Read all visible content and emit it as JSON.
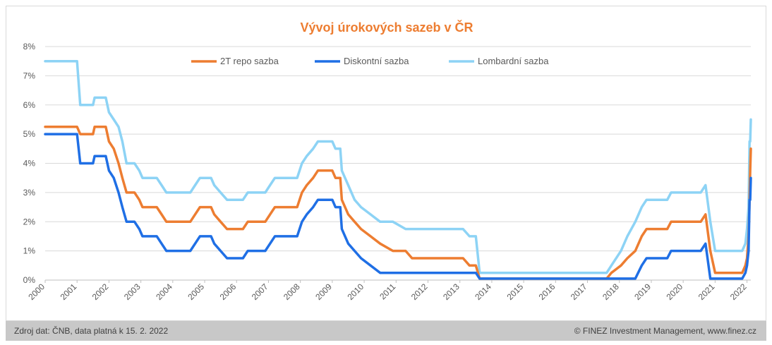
{
  "footer": {
    "source": "Zdroj dat: ČNB, data platná k 15. 2. 2022",
    "copyright": "© FINEZ Investment Management, www.finez.cz"
  },
  "chart_data": {
    "type": "line",
    "title": "Vývoj úrokových sazeb v ČR",
    "xlabel": "",
    "ylabel": "",
    "xlim": [
      2000.0,
      2022.12
    ],
    "ylim": [
      0,
      8
    ],
    "y_ticks": [
      "0%",
      "1%",
      "2%",
      "3%",
      "4%",
      "5%",
      "6%",
      "7%",
      "8%"
    ],
    "x_ticks": [
      "2000",
      "2001",
      "2002",
      "2003",
      "2004",
      "2005",
      "2006",
      "2007",
      "2008",
      "2009",
      "2010",
      "2011",
      "2012",
      "2013",
      "2014",
      "2015",
      "2016",
      "2017",
      "2018",
      "2019",
      "2020",
      "2021",
      "2022"
    ],
    "grid": true,
    "legend_position": "top",
    "colors": {
      "title": "#ed7d31",
      "grid": "#d9d9d9",
      "axis_text": "#595959"
    },
    "series": [
      {
        "name": "2T repo sazba",
        "color": "#ed7d31",
        "points": [
          [
            2000.0,
            5.25
          ],
          [
            2001.0,
            5.25
          ],
          [
            2001.1,
            5.0
          ],
          [
            2001.5,
            5.0
          ],
          [
            2001.55,
            5.25
          ],
          [
            2001.9,
            5.25
          ],
          [
            2002.0,
            4.75
          ],
          [
            2002.15,
            4.5
          ],
          [
            2002.3,
            4.0
          ],
          [
            2002.42,
            3.5
          ],
          [
            2002.55,
            3.0
          ],
          [
            2002.8,
            3.0
          ],
          [
            2002.95,
            2.75
          ],
          [
            2003.05,
            2.5
          ],
          [
            2003.5,
            2.5
          ],
          [
            2003.65,
            2.25
          ],
          [
            2003.8,
            2.0
          ],
          [
            2004.55,
            2.0
          ],
          [
            2004.7,
            2.25
          ],
          [
            2004.85,
            2.5
          ],
          [
            2005.2,
            2.5
          ],
          [
            2005.3,
            2.25
          ],
          [
            2005.5,
            2.0
          ],
          [
            2005.7,
            1.75
          ],
          [
            2006.2,
            1.75
          ],
          [
            2006.35,
            2.0
          ],
          [
            2006.9,
            2.0
          ],
          [
            2007.05,
            2.25
          ],
          [
            2007.2,
            2.5
          ],
          [
            2007.9,
            2.5
          ],
          [
            2008.05,
            3.0
          ],
          [
            2008.2,
            3.25
          ],
          [
            2008.4,
            3.5
          ],
          [
            2008.55,
            3.75
          ],
          [
            2009.0,
            3.75
          ],
          [
            2009.1,
            3.5
          ],
          [
            2009.25,
            3.5
          ],
          [
            2009.3,
            2.75
          ],
          [
            2009.5,
            2.25
          ],
          [
            2009.7,
            2.0
          ],
          [
            2009.9,
            1.75
          ],
          [
            2010.2,
            1.5
          ],
          [
            2010.5,
            1.25
          ],
          [
            2010.9,
            1.0
          ],
          [
            2011.3,
            1.0
          ],
          [
            2011.5,
            0.75
          ],
          [
            2013.1,
            0.75
          ],
          [
            2013.3,
            0.5
          ],
          [
            2013.5,
            0.5
          ],
          [
            2013.62,
            0.05
          ],
          [
            2017.6,
            0.05
          ],
          [
            2017.75,
            0.25
          ],
          [
            2018.05,
            0.5
          ],
          [
            2018.25,
            0.75
          ],
          [
            2018.5,
            1.0
          ],
          [
            2018.7,
            1.5
          ],
          [
            2018.85,
            1.75
          ],
          [
            2019.5,
            1.75
          ],
          [
            2019.62,
            2.0
          ],
          [
            2020.55,
            2.0
          ],
          [
            2020.7,
            2.25
          ],
          [
            2020.85,
            1.0
          ],
          [
            2021.0,
            0.25
          ],
          [
            2021.85,
            0.25
          ],
          [
            2021.95,
            0.5
          ],
          [
            2022.0,
            0.75
          ],
          [
            2022.05,
            1.5
          ],
          [
            2022.08,
            2.75
          ],
          [
            2022.1,
            3.75
          ],
          [
            2022.12,
            4.5
          ]
        ]
      },
      {
        "name": "Diskontní sazba",
        "color": "#1f6fe5",
        "points": [
          [
            2000.0,
            5.0
          ],
          [
            2001.0,
            5.0
          ],
          [
            2001.1,
            4.0
          ],
          [
            2001.5,
            4.0
          ],
          [
            2001.55,
            4.25
          ],
          [
            2001.9,
            4.25
          ],
          [
            2002.0,
            3.75
          ],
          [
            2002.15,
            3.5
          ],
          [
            2002.3,
            3.0
          ],
          [
            2002.42,
            2.5
          ],
          [
            2002.55,
            2.0
          ],
          [
            2002.8,
            2.0
          ],
          [
            2002.95,
            1.75
          ],
          [
            2003.05,
            1.5
          ],
          [
            2003.5,
            1.5
          ],
          [
            2003.65,
            1.25
          ],
          [
            2003.8,
            1.0
          ],
          [
            2004.55,
            1.0
          ],
          [
            2004.7,
            1.25
          ],
          [
            2004.85,
            1.5
          ],
          [
            2005.2,
            1.5
          ],
          [
            2005.3,
            1.25
          ],
          [
            2005.5,
            1.0
          ],
          [
            2005.7,
            0.75
          ],
          [
            2006.2,
            0.75
          ],
          [
            2006.35,
            1.0
          ],
          [
            2006.9,
            1.0
          ],
          [
            2007.05,
            1.25
          ],
          [
            2007.2,
            1.5
          ],
          [
            2007.9,
            1.5
          ],
          [
            2008.05,
            2.0
          ],
          [
            2008.2,
            2.25
          ],
          [
            2008.4,
            2.5
          ],
          [
            2008.55,
            2.75
          ],
          [
            2009.0,
            2.75
          ],
          [
            2009.1,
            2.5
          ],
          [
            2009.25,
            2.5
          ],
          [
            2009.3,
            1.75
          ],
          [
            2009.5,
            1.25
          ],
          [
            2009.7,
            1.0
          ],
          [
            2009.9,
            0.75
          ],
          [
            2010.2,
            0.5
          ],
          [
            2010.5,
            0.25
          ],
          [
            2013.5,
            0.25
          ],
          [
            2013.62,
            0.05
          ],
          [
            2018.5,
            0.05
          ],
          [
            2018.7,
            0.5
          ],
          [
            2018.85,
            0.75
          ],
          [
            2019.5,
            0.75
          ],
          [
            2019.62,
            1.0
          ],
          [
            2020.55,
            1.0
          ],
          [
            2020.7,
            1.25
          ],
          [
            2020.85,
            0.05
          ],
          [
            2021.85,
            0.05
          ],
          [
            2021.95,
            0.25
          ],
          [
            2022.0,
            0.5
          ],
          [
            2022.05,
            1.0
          ],
          [
            2022.08,
            2.75
          ],
          [
            2022.1,
            2.75
          ],
          [
            2022.12,
            3.5
          ]
        ]
      },
      {
        "name": "Lombardní sazba",
        "color": "#8dd3f5",
        "points": [
          [
            2000.0,
            7.5
          ],
          [
            2001.0,
            7.5
          ],
          [
            2001.1,
            6.0
          ],
          [
            2001.5,
            6.0
          ],
          [
            2001.55,
            6.25
          ],
          [
            2001.9,
            6.25
          ],
          [
            2002.0,
            5.75
          ],
          [
            2002.15,
            5.5
          ],
          [
            2002.3,
            5.25
          ],
          [
            2002.42,
            4.75
          ],
          [
            2002.55,
            4.0
          ],
          [
            2002.8,
            4.0
          ],
          [
            2002.95,
            3.75
          ],
          [
            2003.05,
            3.5
          ],
          [
            2003.5,
            3.5
          ],
          [
            2003.65,
            3.25
          ],
          [
            2003.8,
            3.0
          ],
          [
            2004.55,
            3.0
          ],
          [
            2004.7,
            3.25
          ],
          [
            2004.85,
            3.5
          ],
          [
            2005.2,
            3.5
          ],
          [
            2005.3,
            3.25
          ],
          [
            2005.5,
            3.0
          ],
          [
            2005.7,
            2.75
          ],
          [
            2006.2,
            2.75
          ],
          [
            2006.35,
            3.0
          ],
          [
            2006.9,
            3.0
          ],
          [
            2007.05,
            3.25
          ],
          [
            2007.2,
            3.5
          ],
          [
            2007.9,
            3.5
          ],
          [
            2008.05,
            4.0
          ],
          [
            2008.2,
            4.25
          ],
          [
            2008.4,
            4.5
          ],
          [
            2008.55,
            4.75
          ],
          [
            2009.0,
            4.75
          ],
          [
            2009.1,
            4.5
          ],
          [
            2009.25,
            4.5
          ],
          [
            2009.3,
            3.75
          ],
          [
            2009.5,
            3.25
          ],
          [
            2009.7,
            2.75
          ],
          [
            2009.9,
            2.5
          ],
          [
            2010.2,
            2.25
          ],
          [
            2010.5,
            2.0
          ],
          [
            2010.9,
            2.0
          ],
          [
            2011.3,
            1.75
          ],
          [
            2013.1,
            1.75
          ],
          [
            2013.3,
            1.5
          ],
          [
            2013.5,
            1.5
          ],
          [
            2013.62,
            0.25
          ],
          [
            2017.6,
            0.25
          ],
          [
            2017.75,
            0.5
          ],
          [
            2018.05,
            1.0
          ],
          [
            2018.25,
            1.5
          ],
          [
            2018.5,
            2.0
          ],
          [
            2018.7,
            2.5
          ],
          [
            2018.85,
            2.75
          ],
          [
            2019.5,
            2.75
          ],
          [
            2019.62,
            3.0
          ],
          [
            2020.55,
            3.0
          ],
          [
            2020.7,
            3.25
          ],
          [
            2020.85,
            2.0
          ],
          [
            2021.0,
            1.0
          ],
          [
            2021.85,
            1.0
          ],
          [
            2021.95,
            1.25
          ],
          [
            2022.0,
            1.75
          ],
          [
            2022.05,
            2.5
          ],
          [
            2022.08,
            4.75
          ],
          [
            2022.1,
            4.75
          ],
          [
            2022.12,
            5.5
          ]
        ]
      }
    ]
  }
}
